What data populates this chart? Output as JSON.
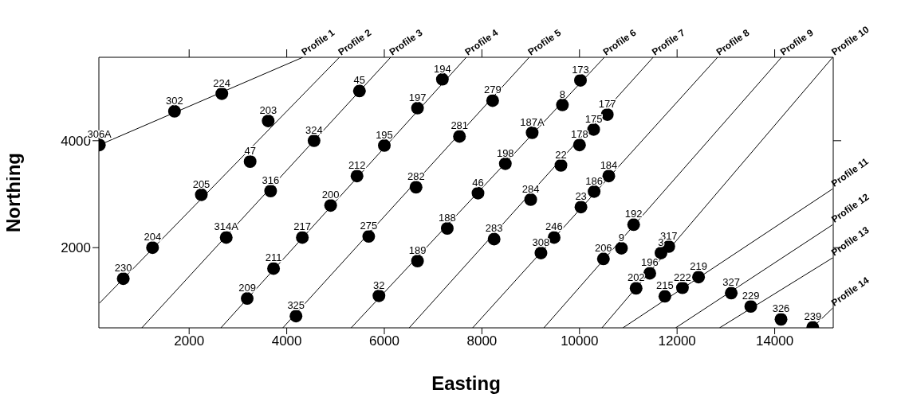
{
  "chart_data": {
    "type": "scatter",
    "xlabel": "Easting",
    "ylabel": "Northing",
    "xlim": [
      150,
      15200
    ],
    "ylim": [
      500,
      5560
    ],
    "xticks": [
      2000,
      4000,
      6000,
      8000,
      10000,
      12000,
      14000
    ],
    "yticks": [
      2000,
      4000
    ],
    "marker": "circle",
    "series": [
      {
        "color": "#000000",
        "x": [
          160,
          1700,
          2670,
          3620,
          3250,
          4560,
          2250,
          3670,
          4900,
          1250,
          2760,
          4320,
          650,
          3730,
          3190,
          4190,
          5490,
          7190,
          6680,
          8220,
          10020,
          9650,
          9030,
          6000,
          7540,
          8480,
          5440,
          9620,
          10000,
          10570,
          10290,
          10600,
          6650,
          7920,
          9000,
          10030,
          5680,
          7290,
          8250,
          9480,
          9210,
          6680,
          5890,
          10300,
          11110,
          10860,
          10490,
          11830,
          11670,
          11440,
          11160,
          11750,
          12110,
          12440,
          13110,
          13510,
          14130,
          14780
        ],
        "values": [
          3920,
          4550,
          4880,
          4370,
          3610,
          4000,
          2990,
          3060,
          2790,
          2000,
          2190,
          2190,
          1420,
          1610,
          1050,
          720,
          4930,
          5150,
          4610,
          4750,
          5130,
          4670,
          4150,
          3910,
          4080,
          3570,
          3340,
          3540,
          3920,
          4490,
          4210,
          3340,
          3130,
          3020,
          2900,
          2760,
          2210,
          2360,
          2160,
          2190,
          1900,
          1750,
          1100,
          3050,
          2430,
          1990,
          1790,
          2020,
          1900,
          1520,
          1240,
          1090,
          1250,
          1450,
          1150,
          900,
          660,
          510
        ]
      },
      {
        "type": "line",
        "marker": "none",
        "name": "Profile 1",
        "color": "#000000",
        "x": [
          160,
          4330
        ],
        "values": [
          3920,
          5560
        ]
      },
      {
        "type": "line",
        "marker": "none",
        "name": "Profile 2",
        "color": "#000000",
        "x": [
          160,
          5080
        ],
        "values": [
          960,
          5560
        ]
      },
      {
        "type": "line",
        "marker": "none",
        "name": "Profile 3",
        "color": "#000000",
        "x": [
          1030,
          6130
        ],
        "values": [
          500,
          5560
        ]
      },
      {
        "type": "line",
        "marker": "none",
        "name": "Profile 4",
        "color": "#000000",
        "x": [
          2650,
          7680
        ],
        "values": [
          500,
          5560
        ]
      },
      {
        "type": "line",
        "marker": "none",
        "name": "Profile 5",
        "color": "#000000",
        "x": [
          3920,
          8970
        ],
        "values": [
          500,
          5560
        ]
      },
      {
        "type": "line",
        "marker": "none",
        "name": "Profile 6",
        "color": "#000000",
        "x": [
          5320,
          10510
        ],
        "values": [
          500,
          5560
        ]
      },
      {
        "type": "line",
        "marker": "none",
        "name": "Profile 7",
        "color": "#000000",
        "x": [
          6510,
          11510
        ],
        "values": [
          500,
          5560
        ]
      },
      {
        "type": "line",
        "marker": "none",
        "name": "Profile 8",
        "color": "#000000",
        "x": [
          7810,
          12830
        ],
        "values": [
          500,
          5560
        ]
      },
      {
        "type": "line",
        "marker": "none",
        "name": "Profile 9",
        "color": "#000000",
        "x": [
          9270,
          14140
        ],
        "values": [
          500,
          5560
        ]
      },
      {
        "type": "line",
        "marker": "none",
        "name": "Profile 10",
        "color": "#000000",
        "x": [
          10460,
          15190
        ],
        "values": [
          500,
          5560
        ]
      },
      {
        "type": "line",
        "marker": "none",
        "name": "Profile 11",
        "color": "#000000",
        "x": [
          10890,
          15190
        ],
        "values": [
          500,
          3100
        ]
      },
      {
        "type": "line",
        "marker": "none",
        "name": "Profile 12",
        "color": "#000000",
        "x": [
          11970,
          15190
        ],
        "values": [
          500,
          2430
        ]
      },
      {
        "type": "line",
        "marker": "none",
        "name": "Profile 13",
        "color": "#000000",
        "x": [
          12870,
          15190
        ],
        "values": [
          500,
          1810
        ]
      },
      {
        "type": "line",
        "marker": "none",
        "name": "Profile 14",
        "color": "#000000",
        "x": [
          14780,
          15190
        ],
        "values": [
          510,
          870
        ]
      }
    ],
    "annotations": [
      {
        "text": "306A",
        "x": 160,
        "y": 3920
      },
      {
        "text": "302",
        "x": 1700,
        "y": 4550
      },
      {
        "text": "224",
        "x": 2670,
        "y": 4880
      },
      {
        "text": "203",
        "x": 3620,
        "y": 4370
      },
      {
        "text": "47",
        "x": 3250,
        "y": 3610
      },
      {
        "text": "324",
        "x": 4560,
        "y": 4000
      },
      {
        "text": "205",
        "x": 2250,
        "y": 2990
      },
      {
        "text": "316",
        "x": 3670,
        "y": 3060
      },
      {
        "text": "200",
        "x": 4900,
        "y": 2790
      },
      {
        "text": "204",
        "x": 1250,
        "y": 2000
      },
      {
        "text": "314A",
        "x": 2760,
        "y": 2190
      },
      {
        "text": "217",
        "x": 4320,
        "y": 2190
      },
      {
        "text": "230",
        "x": 650,
        "y": 1420
      },
      {
        "text": "211",
        "x": 3730,
        "y": 1610
      },
      {
        "text": "209",
        "x": 3190,
        "y": 1050
      },
      {
        "text": "325",
        "x": 4190,
        "y": 720
      },
      {
        "text": "45",
        "x": 5490,
        "y": 4930
      },
      {
        "text": "194",
        "x": 7190,
        "y": 5150
      },
      {
        "text": "197",
        "x": 6680,
        "y": 4610
      },
      {
        "text": "279",
        "x": 8220,
        "y": 4750
      },
      {
        "text": "173",
        "x": 10020,
        "y": 5130
      },
      {
        "text": "8",
        "x": 9650,
        "y": 4670
      },
      {
        "text": "187A",
        "x": 9030,
        "y": 4150
      },
      {
        "text": "195",
        "x": 6000,
        "y": 3910
      },
      {
        "text": "281",
        "x": 7540,
        "y": 4080
      },
      {
        "text": "198",
        "x": 8480,
        "y": 3570
      },
      {
        "text": "212",
        "x": 5440,
        "y": 3340
      },
      {
        "text": "22",
        "x": 9620,
        "y": 3540
      },
      {
        "text": "178",
        "x": 10000,
        "y": 3920
      },
      {
        "text": "177",
        "x": 10570,
        "y": 4490
      },
      {
        "text": "175",
        "x": 10290,
        "y": 4210
      },
      {
        "text": "184",
        "x": 10600,
        "y": 3340
      },
      {
        "text": "282",
        "x": 6650,
        "y": 3130
      },
      {
        "text": "46",
        "x": 7920,
        "y": 3020
      },
      {
        "text": "284",
        "x": 9000,
        "y": 2900
      },
      {
        "text": "23",
        "x": 10030,
        "y": 2760
      },
      {
        "text": "275",
        "x": 5680,
        "y": 2210
      },
      {
        "text": "188",
        "x": 7290,
        "y": 2360
      },
      {
        "text": "283",
        "x": 8250,
        "y": 2160
      },
      {
        "text": "246",
        "x": 9480,
        "y": 2190
      },
      {
        "text": "308",
        "x": 9210,
        "y": 1900
      },
      {
        "text": "189",
        "x": 6680,
        "y": 1750
      },
      {
        "text": "32",
        "x": 5890,
        "y": 1100
      },
      {
        "text": "186",
        "x": 10300,
        "y": 3050
      },
      {
        "text": "192",
        "x": 11110,
        "y": 2430
      },
      {
        "text": "9",
        "x": 10860,
        "y": 1990
      },
      {
        "text": "206",
        "x": 10490,
        "y": 1790
      },
      {
        "text": "317",
        "x": 11830,
        "y": 2020
      },
      {
        "text": "3",
        "x": 11670,
        "y": 1900
      },
      {
        "text": "196",
        "x": 11440,
        "y": 1520
      },
      {
        "text": "202",
        "x": 11160,
        "y": 1240
      },
      {
        "text": "215",
        "x": 11750,
        "y": 1090
      },
      {
        "text": "222",
        "x": 12110,
        "y": 1250
      },
      {
        "text": "219",
        "x": 12440,
        "y": 1450
      },
      {
        "text": "327",
        "x": 13110,
        "y": 1150
      },
      {
        "text": "229",
        "x": 13510,
        "y": 900
      },
      {
        "text": "326",
        "x": 14130,
        "y": 660
      },
      {
        "text": "239",
        "x": 14780,
        "y": 510
      }
    ]
  }
}
